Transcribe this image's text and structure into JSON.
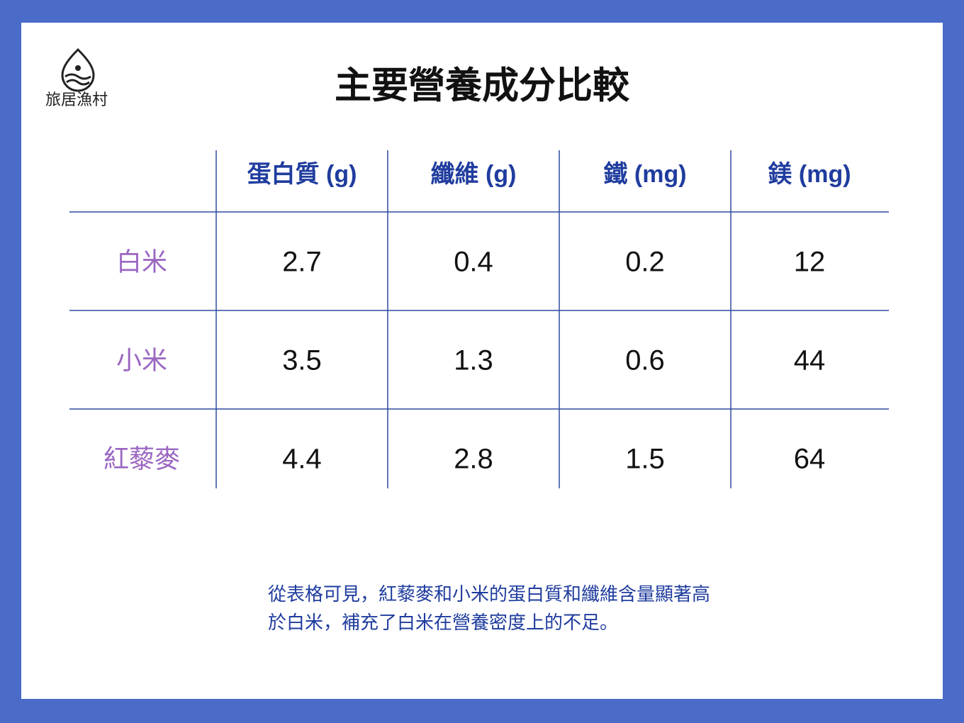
{
  "logo": {
    "text": "旅居漁村"
  },
  "title": "主要營養成分比較",
  "table": {
    "columns": [
      "蛋白質 (g)",
      "纖維 (g)",
      "鐵 (mg)",
      "鎂 (mg)"
    ],
    "rows": [
      {
        "label": "白米",
        "cells": [
          2.7,
          0.4,
          0.2,
          12
        ]
      },
      {
        "label": "小米",
        "cells": [
          3.5,
          1.3,
          0.6,
          44
        ]
      },
      {
        "label": "紅藜麥",
        "cells": [
          4.4,
          2.8,
          1.5,
          64
        ]
      }
    ]
  },
  "note": {
    "lines": [
      "從表格可見，紅藜麥和小米的蛋白質和纖維含量顯著高",
      "於白米，補充了白米在營養密度上的不足。"
    ]
  }
}
